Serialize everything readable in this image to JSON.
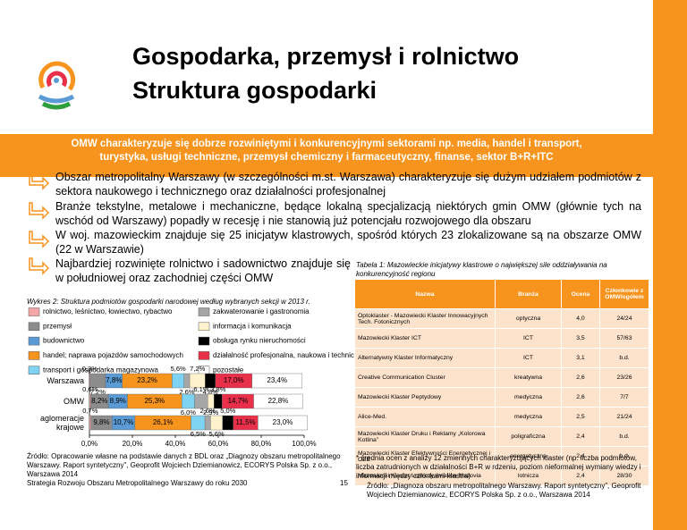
{
  "header": {
    "title_line1": "Gospodarka, przemysł i rolnictwo",
    "title_line2": "Struktura gospodarki"
  },
  "banner": "OMW charakteryzuje się dobrze rozwiniętymi i konkurencyjnymi sektorami np. media, handel i transport, turystyka, usługi techniczne, przemysł chemiczny i farmaceutyczny, finanse, sektor B+R+ITC",
  "bullets": [
    "Obszar metropolitalny Warszawy (w szczególności m.st. Warszawa) charakteryzuje się dużym udziałem podmiotów z sektora naukowego i technicznego oraz działalności profesjonalnej",
    "Branże tekstylne, metalowe i mechaniczne, będące lokalną specjalizacją niektórych gmin OMW (głównie tych na wschód od Warszawy) popadły w recesję i nie stanowią już potencjału rozwojowego dla obszaru",
    "W woj. mazowieckim znajduje się 25 inicjatyw klastrowych, spośród których 23 zlokalizowane są na obszarze OMW (22 w Warszawie)",
    "Najbardziej rozwinięte rolnictwo i sadownictwo znajduje się w południowej oraz zachodniej części OMW"
  ],
  "chart_data": {
    "type": "bar",
    "orientation": "horizontal",
    "stacked": true,
    "title": "Wykres 2: Struktura podmiotów gospodarki narodowej według wybranych sekcji w 2013 r.",
    "categories": [
      "Warszawa",
      "OMW",
      "aglomeracje krajowe"
    ],
    "series": [
      {
        "name": "rolnictwo, leśnictwo, łowiectwo, rybactwo",
        "color": "#f4a6a6",
        "values": [
          0.3,
          0.6,
          0.7
        ],
        "value_labels": [
          "0,3%",
          "0,6%",
          "0,7%"
        ]
      },
      {
        "name": "przemysł",
        "color": "#8c8c8c",
        "values": [
          7.2,
          8.2,
          9.8
        ],
        "value_labels": [
          "7,2%",
          "8,2%",
          "9,8%"
        ]
      },
      {
        "name": "budownictwo",
        "color": "#5b9bd5",
        "values": [
          7.8,
          8.9,
          10.7
        ],
        "value_labels": [
          "7,8%",
          "8,9%",
          "10,7%"
        ]
      },
      {
        "name": "handel; naprawa pojazdów samochodowych",
        "color": "#f7941d",
        "values": [
          23.2,
          25.3,
          26.1
        ],
        "value_labels": [
          "23,2%",
          "25,3%",
          "26,1%"
        ]
      },
      {
        "name": "transport i gospodarka magazynowa",
        "color": "#7fd3f2",
        "values": [
          5.6,
          6.0,
          6.5
        ],
        "value_labels": [
          "5,6%",
          "6,0%",
          "6,5%"
        ]
      },
      {
        "name": "zakwaterowanie i gastronomia",
        "color": "#a6a6a6",
        "values": [
          2.6,
          6.1,
          2.6
        ],
        "value_labels": [
          "2,6%",
          "6,1%",
          "2,6%"
        ]
      },
      {
        "name": "informacja i komunikacja",
        "color": "#fff2cc",
        "values": [
          7.2,
          2.9,
          5.6
        ],
        "value_labels": [
          "7,2%",
          "2,9%",
          "5,6%"
        ]
      },
      {
        "name": "obsługa rynku nieruchomości",
        "color": "#000000",
        "values": [
          4.8,
          3.8,
          5.0
        ],
        "value_labels": [
          "4,8%",
          "3,8%",
          "5,0%"
        ]
      },
      {
        "name": "działalność profesjonalna, naukowa i techniczna",
        "color": "#e8304a",
        "values": [
          17.0,
          14.7,
          11.5
        ],
        "value_labels": [
          "17,0%",
          "14,7%",
          "11,5%"
        ]
      },
      {
        "name": "pozostałe",
        "color": "#ffffff",
        "values": [
          23.4,
          22.8,
          23.0
        ],
        "value_labels": [
          "23,4%",
          "22,8%",
          "23,0%"
        ]
      }
    ],
    "xlim": [
      0,
      100
    ],
    "xticks": [
      {
        "value": 0,
        "label": "0,0%"
      },
      {
        "value": 20,
        "label": "20,0%"
      },
      {
        "value": 40,
        "label": "40,0%"
      },
      {
        "value": 60,
        "label": "60,0%"
      },
      {
        "value": 80,
        "label": "80,0%"
      },
      {
        "value": 100,
        "label": "100,0%"
      }
    ]
  },
  "chart_sources": [
    "Źródło: Opracowanie własne na podstawie danych z BDL oraz „Diagnozy obszaru metropolitalnego Warszawy. Raport syntetyczny”, Geoprofit Wojciech Dziemianowicz, ECORYS Polska Sp. z o.o., Warszawa 2014",
    "Strategia Rozwoju Obszaru Metropolitalnego Warszawy do roku 2030"
  ],
  "page_number": "15",
  "table": {
    "caption": "Tabela 1: Mazowieckie inicjatywy klastrowe o największej sile oddziaływania na konkurencyjność regionu",
    "columns": [
      "Nazwa",
      "Branża",
      "Ocena",
      "Członkowie z OMW/ogółem"
    ],
    "rows": [
      [
        "Optoklaster - Mazowiecki Klaster Innowacyjnych Tech. Fotonicznych",
        "optyczna",
        "4,0",
        "24/24"
      ],
      [
        "Mazowiecki Klaster ICT",
        "ICT",
        "3,5",
        "57/63"
      ],
      [
        "Alternatywny Klaster Informatyczny",
        "ICT",
        "3,1",
        "b.d."
      ],
      [
        "Creative Communication Cluster",
        "kreatywna",
        "2,6",
        "23/26"
      ],
      [
        "Mazowiecki Klaster Peptydowy",
        "medyczna",
        "2,6",
        "7/7"
      ],
      [
        "Alice-Med.",
        "medyczna",
        "2,5",
        "21/24"
      ],
      [
        "Mazowiecki Klaster Druku i Reklamy „Kolorowa Kotlina”",
        "poligraficzna",
        "2,4",
        "b.d."
      ],
      [
        "Mazowiecki Klaster Efektywności Energetycznej i OZE",
        "energetyczna",
        "2,4",
        "b.d."
      ],
      [
        "Mazowiecki Klaster Lotniczy Aviation Mazovia",
        "lotnicza",
        "2,4",
        "28/30"
      ]
    ],
    "footnote": "* średnia ocen z analizy 12 zmiennych charakteryzujących klaster (np. liczba podmiotów, liczba zatrudnionych w działalności B+R w rdzeniu, poziom nieformalnej wymiany wiedzy i informacji między członkami klastra)",
    "source": "Źródło: „Diagnoza obszaru metropolitalnego Warszawy. Raport syntetyczny”, Geoprofit Wojciech Dziemianowicz, ECORYS Polska Sp. z o.o., Warszawa 2014"
  }
}
